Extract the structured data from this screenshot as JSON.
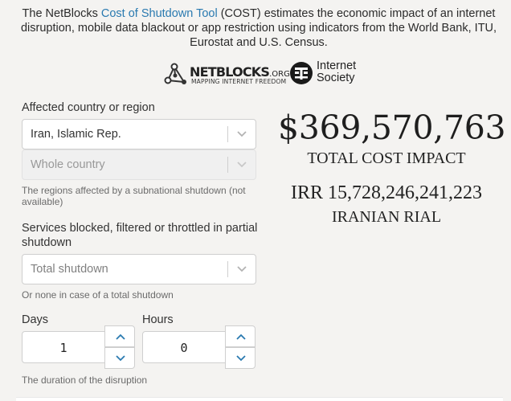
{
  "intro": {
    "text_before": "The NetBlocks ",
    "link_text": "Cost of Shutdown Tool",
    "text_after": " (COST) estimates the economic impact of an internet disruption, mobile data blackout or app restriction using indicators from the World Bank, ITU, Eurostat and U.S. Census."
  },
  "logos": {
    "netblocks_name": "NETBLOCKS",
    "netblocks_suffix": ".ORG",
    "netblocks_tagline": "MAPPING INTERNET FREEDOM",
    "isoc_line1": "Internet",
    "isoc_line2": "Society"
  },
  "form": {
    "country_label": "Affected country or region",
    "country_value": "Iran, Islamic Rep.",
    "region_value": "Whole country",
    "region_hint": "The regions affected by a subnational shutdown (not available)",
    "services_label": "Services blocked, filtered or throttled in partial shutdown",
    "services_placeholder": "Total shutdown",
    "services_hint": "Or none in case of a total shutdown",
    "days_label": "Days",
    "days_value": "1",
    "hours_label": "Hours",
    "hours_value": "0",
    "duration_hint": "The duration of the disruption"
  },
  "result": {
    "total_cost": "$369,570,763",
    "total_cost_label": "TOTAL COST IMPACT",
    "local_cost": "IRR 15,728,246,241,223",
    "local_currency_label": "IRANIAN RIAL"
  },
  "colors": {
    "link": "#2a7ab0",
    "background": "#f4f3f1"
  },
  "icons": {
    "dropdown": "chevron-down-icon",
    "step_up": "chevron-up-icon",
    "step_down": "chevron-down-icon"
  }
}
